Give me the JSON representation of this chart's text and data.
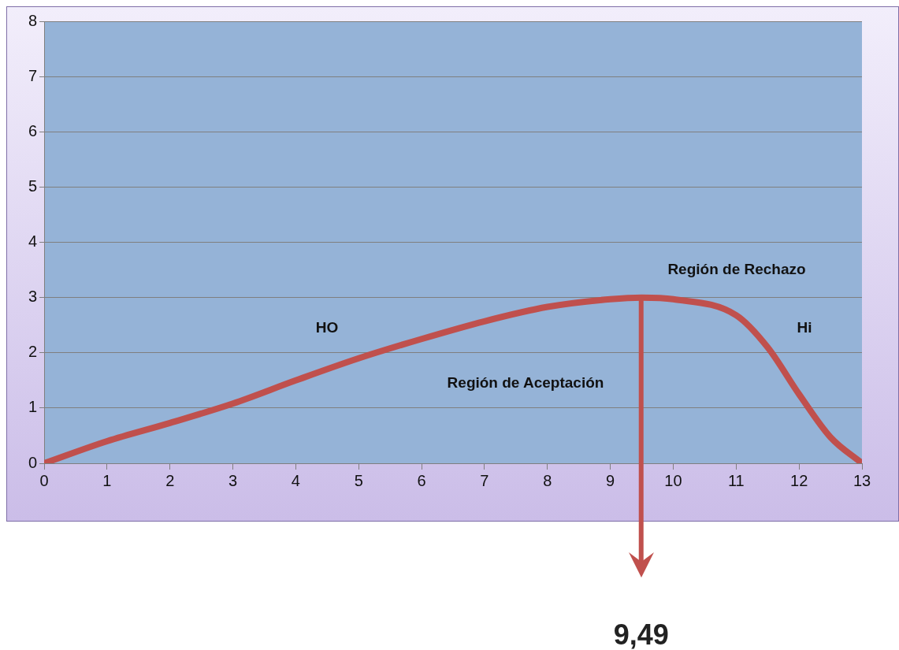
{
  "chart_data": {
    "type": "line",
    "x": [
      0,
      1,
      2,
      3,
      4,
      5,
      6,
      7,
      8,
      9,
      9.5,
      10,
      11,
      11.5,
      12,
      12.5,
      13
    ],
    "series": [
      {
        "color": "#c0504d",
        "values": [
          0,
          0.4,
          0.73,
          1.08,
          1.5,
          1.9,
          2.25,
          2.57,
          2.83,
          2.97,
          3,
          2.97,
          2.68,
          2.1,
          1.25,
          0.47,
          0
        ]
      }
    ],
    "xlim": [
      0,
      13
    ],
    "xticks": [
      0,
      1,
      2,
      3,
      4,
      5,
      6,
      7,
      8,
      9,
      10,
      11,
      12,
      13
    ],
    "ylim": [
      0,
      8
    ],
    "yticks": [
      0,
      1,
      2,
      3,
      4,
      5,
      6,
      7,
      8
    ],
    "grid": "y",
    "legend": false,
    "marker": "none",
    "line_style": "solid",
    "ref_lines": [
      {
        "axis": "x",
        "value": 9.49,
        "label": "9,49",
        "color": "#c0504d"
      }
    ],
    "annotations": [
      "Región de Rechazo",
      "HO",
      "Hi",
      "Región de Aceptación"
    ]
  }
}
